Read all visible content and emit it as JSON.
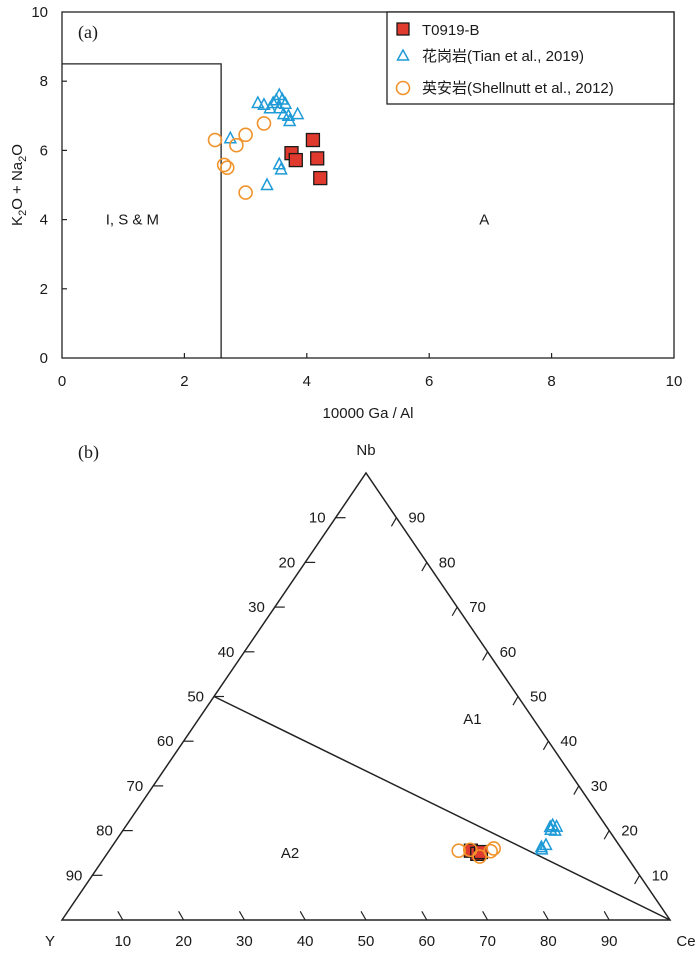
{
  "chart_data": [
    {
      "type": "scatter",
      "panel_label": "(a)",
      "xlabel": "10000 Ga / Al",
      "ylabel_parts": {
        "k": "K",
        "sub1": "2",
        "o_plus_na": "O + Na",
        "sub2": "2",
        "o": "O"
      },
      "xlim": [
        0,
        10
      ],
      "ylim": [
        0,
        10
      ],
      "xticks": [
        "0",
        "2",
        "4",
        "6",
        "8",
        "10"
      ],
      "yticks": [
        "0",
        "2",
        "4",
        "6",
        "8",
        "10"
      ],
      "fields": [
        {
          "label": "I, S & M",
          "x": 1.15,
          "y": 4.0
        },
        {
          "label": "A",
          "x": 6.9,
          "y": 4.0
        }
      ],
      "boundary": [
        [
          0,
          8.5
        ],
        [
          2.6,
          8.5
        ],
        [
          2.6,
          0
        ]
      ],
      "legend_position": "top-right",
      "series": [
        {
          "name": "T0919-B",
          "marker": "square",
          "color": "#e03a2e",
          "points": [
            [
              3.75,
              5.92
            ],
            [
              3.82,
              5.72
            ],
            [
              4.1,
              6.3
            ],
            [
              4.17,
              5.77
            ],
            [
              4.22,
              5.2
            ]
          ]
        },
        {
          "name": "花岗岩(Tian et al., 2019)",
          "marker": "triangle",
          "color": "#1e9bd7",
          "points": [
            [
              2.75,
              6.35
            ],
            [
              3.2,
              7.37
            ],
            [
              3.3,
              7.32
            ],
            [
              3.4,
              7.22
            ],
            [
              3.45,
              7.37
            ],
            [
              3.5,
              7.45
            ],
            [
              3.55,
              7.6
            ],
            [
              3.6,
              7.47
            ],
            [
              3.55,
              7.22
            ],
            [
              3.65,
              7.35
            ],
            [
              3.62,
              7.05
            ],
            [
              3.7,
              7.0
            ],
            [
              3.72,
              6.85
            ],
            [
              3.85,
              7.05
            ],
            [
              3.55,
              5.6
            ],
            [
              3.58,
              5.45
            ],
            [
              3.35,
              5.0
            ]
          ]
        },
        {
          "name": "英安岩(Shellnutt et al., 2012)",
          "marker": "circle",
          "color": "#f0932b",
          "points": [
            [
              2.5,
              6.3
            ],
            [
              2.65,
              5.58
            ],
            [
              2.7,
              5.5
            ],
            [
              2.85,
              6.15
            ],
            [
              3.0,
              6.45
            ],
            [
              3.3,
              6.78
            ],
            [
              3.0,
              4.78
            ]
          ]
        }
      ]
    },
    {
      "type": "ternary",
      "panel_label": "(b)",
      "apex_labels": {
        "top": "Nb",
        "left": "Y",
        "right": "Ce"
      },
      "bottom_ticks": [
        "10",
        "20",
        "30",
        "40",
        "50",
        "60",
        "70",
        "80",
        "90"
      ],
      "left_ticks": [
        "10",
        "20",
        "30",
        "40",
        "50",
        "60",
        "70",
        "80",
        "90"
      ],
      "right_ticks": [
        "90",
        "80",
        "70",
        "60",
        "50",
        "40",
        "30",
        "20",
        "10"
      ],
      "fields": [
        {
          "label": "A1",
          "nb": 45,
          "y": 10,
          "ce": 45
        },
        {
          "label": "A2",
          "nb": 15,
          "y": 55,
          "ce": 30
        }
      ],
      "divider": [
        {
          "nb": 50,
          "y": 50,
          "ce": 0
        },
        {
          "nb": 0,
          "y": 0,
          "ce": 100
        }
      ],
      "series": [
        {
          "name": "T0919-B",
          "marker": "square",
          "color": "#e03a2e",
          "points": [
            {
              "nb": 15.5,
              "y": 25.0,
              "ce": 59.5
            },
            {
              "nb": 14.8,
              "y": 24.3,
              "ce": 60.9
            },
            {
              "nb": 15.2,
              "y": 23.5,
              "ce": 61.3
            }
          ]
        },
        {
          "name": "花岗岩(Tian et al., 2019)",
          "marker": "triangle",
          "color": "#1e9bd7",
          "points": [
            {
              "nb": 20.8,
              "y": 9.3,
              "ce": 69.9
            },
            {
              "nb": 21.2,
              "y": 8.7,
              "ce": 70.1
            },
            {
              "nb": 20.2,
              "y": 9.5,
              "ce": 70.3
            },
            {
              "nb": 20.9,
              "y": 8.2,
              "ce": 70.9
            },
            {
              "nb": 20.0,
              "y": 8.9,
              "ce": 71.1
            },
            {
              "nb": 16.3,
              "y": 13.0,
              "ce": 70.7
            },
            {
              "nb": 16.8,
              "y": 12.0,
              "ce": 71.2
            },
            {
              "nb": 15.8,
              "y": 13.2,
              "ce": 71.0
            }
          ]
        },
        {
          "name": "英安岩(Shellnutt et al., 2012)",
          "marker": "circle",
          "color": "#f0932b",
          "points": [
            {
              "nb": 15.5,
              "y": 27.0,
              "ce": 57.5
            },
            {
              "nb": 15.7,
              "y": 25.0,
              "ce": 59.3
            },
            {
              "nb": 14.2,
              "y": 24.2,
              "ce": 61.6
            },
            {
              "nb": 15.4,
              "y": 21.8,
              "ce": 62.8
            },
            {
              "nb": 16.0,
              "y": 21.0,
              "ce": 63.0
            }
          ]
        }
      ]
    }
  ]
}
